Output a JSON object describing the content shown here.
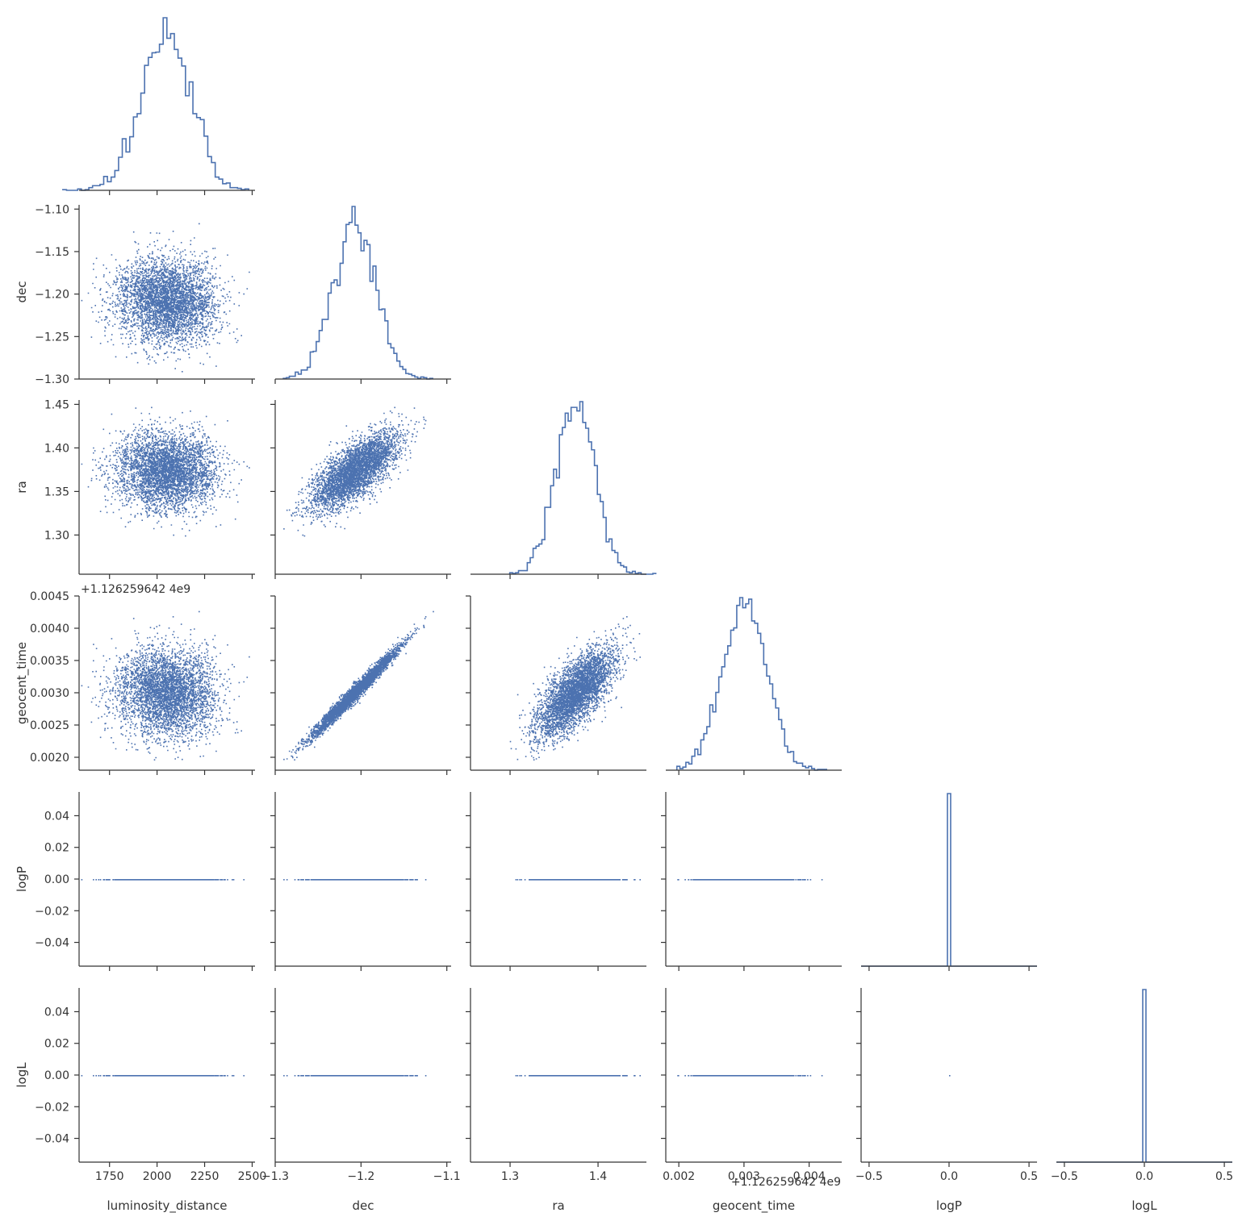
{
  "chart_data": {
    "type": "scatter",
    "layout": "corner pair plot",
    "colors": {
      "marks": "#4c72b0",
      "axes": "#333333",
      "text": "#333333",
      "background": "#ffffff"
    },
    "variables": [
      {
        "name": "luminosity_distance",
        "label": "luminosity_distance",
        "lim": [
          1590,
          2515
        ],
        "ticks": [
          1750,
          2000,
          2250,
          2500
        ],
        "tick_labels": [
          "1750",
          "2000",
          "2250",
          "2500"
        ],
        "mean": 2045,
        "sd": 130
      },
      {
        "name": "dec",
        "label": "dec",
        "lim": [
          -1.3,
          -1.095
        ],
        "ticks": [
          -1.3,
          -1.2,
          -1.1
        ],
        "tick_labels": [
          "−1.3",
          "−1.2",
          "−1.1"
        ],
        "y_ticks": [
          -1.3,
          -1.25,
          -1.2,
          -1.15,
          -1.1
        ],
        "y_tick_labels": [
          "−1.30",
          "−1.25",
          "−1.20",
          "−1.15",
          "−1.10"
        ],
        "mean": -1.207,
        "sd": 0.025
      },
      {
        "name": "ra",
        "label": "ra",
        "lim": [
          1.255,
          1.455
        ],
        "ticks": [
          1.3,
          1.4
        ],
        "tick_labels": [
          "1.3",
          "1.4"
        ],
        "y_ticks": [
          1.3,
          1.35,
          1.4,
          1.45
        ],
        "y_tick_labels": [
          "1.30",
          "1.35",
          "1.40",
          "1.45"
        ],
        "mean": 1.375,
        "sd": 0.022
      },
      {
        "name": "geocent_time",
        "label": "geocent_time",
        "offset_text": "+1.126259642 4e9",
        "lim": [
          0.0018,
          0.0045
        ],
        "ticks": [
          0.002,
          0.003,
          0.004
        ],
        "tick_labels": [
          "0.002",
          "0.003",
          "0.004"
        ],
        "y_ticks": [
          0.002,
          0.0025,
          0.003,
          0.0035,
          0.004,
          0.0045
        ],
        "y_tick_labels": [
          "0.0020",
          "0.0025",
          "0.0030",
          "0.0035",
          "0.0040",
          "0.0045"
        ],
        "mean": 0.00302,
        "sd": 0.00034
      },
      {
        "name": "logP",
        "label": "logP",
        "lim": [
          -0.55,
          0.55
        ],
        "ylim": [
          -0.055,
          0.055
        ],
        "ticks": [
          -0.5,
          0.0,
          0.5
        ],
        "tick_labels": [
          "−0.5",
          "0.0",
          "0.5"
        ],
        "y_ticks": [
          -0.04,
          -0.02,
          0.0,
          0.02,
          0.04
        ],
        "y_tick_labels": [
          "−0.04",
          "−0.02",
          "0.00",
          "0.02",
          "0.04"
        ],
        "constant": 0
      },
      {
        "name": "logL",
        "label": "logL",
        "lim": [
          -0.55,
          0.55
        ],
        "ylim": [
          -0.055,
          0.055
        ],
        "ticks": [
          -0.5,
          0.0,
          0.5
        ],
        "tick_labels": [
          "−0.5",
          "0.0",
          "0.5"
        ],
        "y_ticks": [
          -0.04,
          -0.02,
          0.0,
          0.02,
          0.04
        ],
        "y_tick_labels": [
          "−0.04",
          "−0.02",
          "0.00",
          "0.02",
          "0.04"
        ],
        "constant": 0
      }
    ],
    "correlations": {
      "dec|ra": 0.72,
      "dec|geocent_time": 0.985,
      "ra|geocent_time": 0.72,
      "luminosity_distance|dec": -0.05,
      "luminosity_distance|ra": -0.03,
      "luminosity_distance|geocent_time": -0.04
    },
    "n_samples": 4000,
    "histogram": {
      "style": "step",
      "bins": 50
    },
    "diagonal": "histograms",
    "off_diagonal": "scatter (lower triangle only)"
  }
}
